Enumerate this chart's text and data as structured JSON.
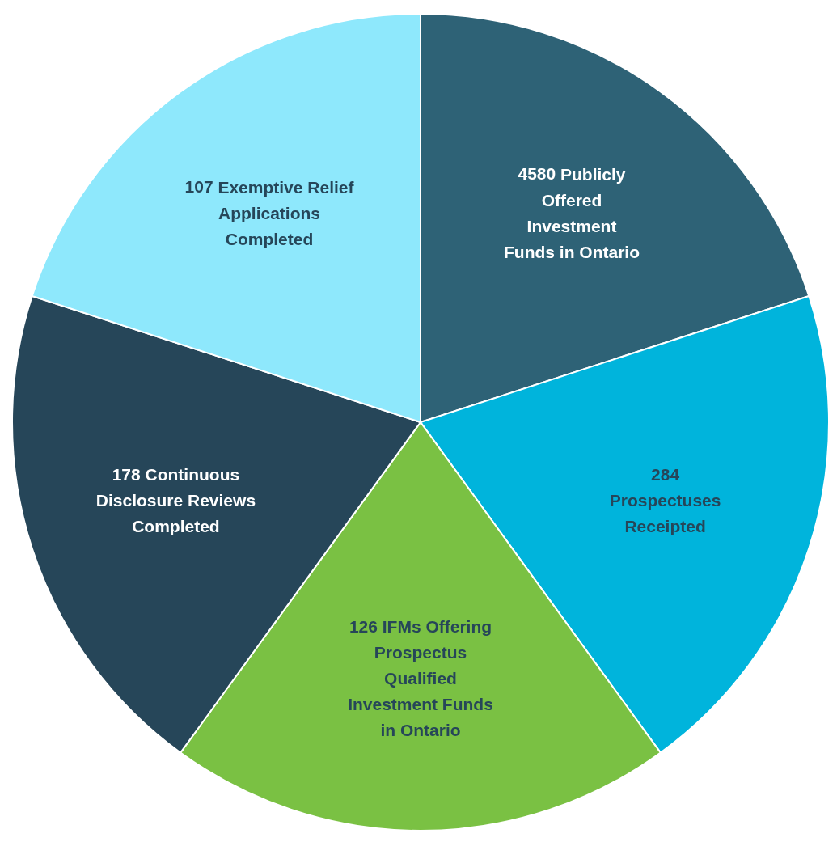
{
  "chart_data": {
    "type": "other",
    "categories": [
      "Publicly Offered Investment Funds in Ontario",
      "Prospectuses Receipted",
      "IFMs Offering Prospectus Qualified Investment Funds in Ontario",
      "Continuous Disclosure Reviews Completed",
      "Exemptive Relief Applications Completed"
    ],
    "values": [
      4580,
      284,
      126,
      178,
      107
    ],
    "data_labels": true,
    "colors": [
      "#2e6276",
      "#00b4dc",
      "#7ac143",
      "#264659",
      "#8ee8fc"
    ]
  }
}
